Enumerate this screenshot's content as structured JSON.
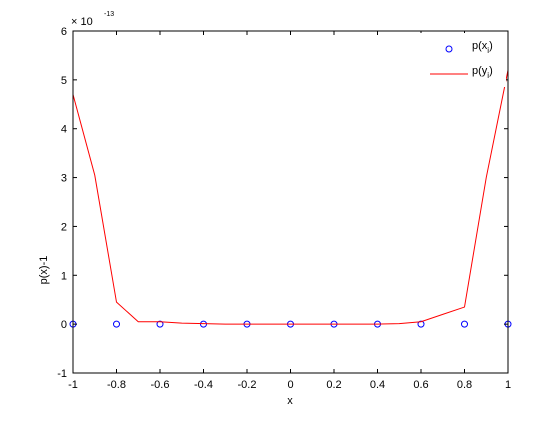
{
  "chart_data": {
    "type": "line",
    "xlabel": "x",
    "ylabel": "p(x)-1",
    "exponent": {
      "base": "× 10",
      "power": "-13"
    },
    "xlim": [
      -1,
      1
    ],
    "ylim": [
      -1,
      6
    ],
    "x_ticks": [
      -1,
      -0.8,
      -0.6,
      -0.4,
      -0.2,
      0,
      0.2,
      0.4,
      0.6,
      0.8,
      1
    ],
    "x_tick_labels": [
      "-1",
      "-0.8",
      "-0.6",
      "-0.4",
      "-0.2",
      "0",
      "0.2",
      "0.4",
      "0.6",
      "0.8",
      "1"
    ],
    "y_ticks": [
      -1,
      0,
      1,
      2,
      3,
      4,
      5,
      6
    ],
    "y_tick_labels": [
      "-1",
      "0",
      "1",
      "2",
      "3",
      "4",
      "5",
      "6"
    ],
    "grid": false,
    "legend_placement": "top-right",
    "series": [
      {
        "name": "p(x_i)",
        "legend_main": "p(x",
        "legend_sub": "i",
        "legend_close": ")",
        "style": "markers",
        "marker": "circle",
        "color": "#0000ff",
        "x": [
          -1,
          -0.8,
          -0.6,
          -0.4,
          -0.2,
          0,
          0.2,
          0.4,
          0.6,
          0.8,
          1
        ],
        "y": [
          0,
          0,
          0,
          0,
          0,
          0,
          0,
          0,
          0,
          0,
          0
        ]
      },
      {
        "name": "p(y_i)",
        "legend_main": "p(y",
        "legend_sub": "i",
        "legend_close": ")",
        "style": "line",
        "color": "#ff0000",
        "x": [
          -1,
          -0.9,
          -0.8,
          -0.7,
          -0.6,
          -0.5,
          -0.4,
          -0.3,
          -0.2,
          -0.1,
          0,
          0.1,
          0.2,
          0.3,
          0.4,
          0.5,
          0.6,
          0.7,
          0.8,
          0.9,
          1
        ],
        "y": [
          4.7,
          3.05,
          0.45,
          0.05,
          0.05,
          0.02,
          0.01,
          0.0,
          0.0,
          0.0,
          0.0,
          0.0,
          0.0,
          0.0,
          0.0,
          0.01,
          0.05,
          0.2,
          0.35,
          3.0,
          5.2
        ]
      }
    ]
  }
}
